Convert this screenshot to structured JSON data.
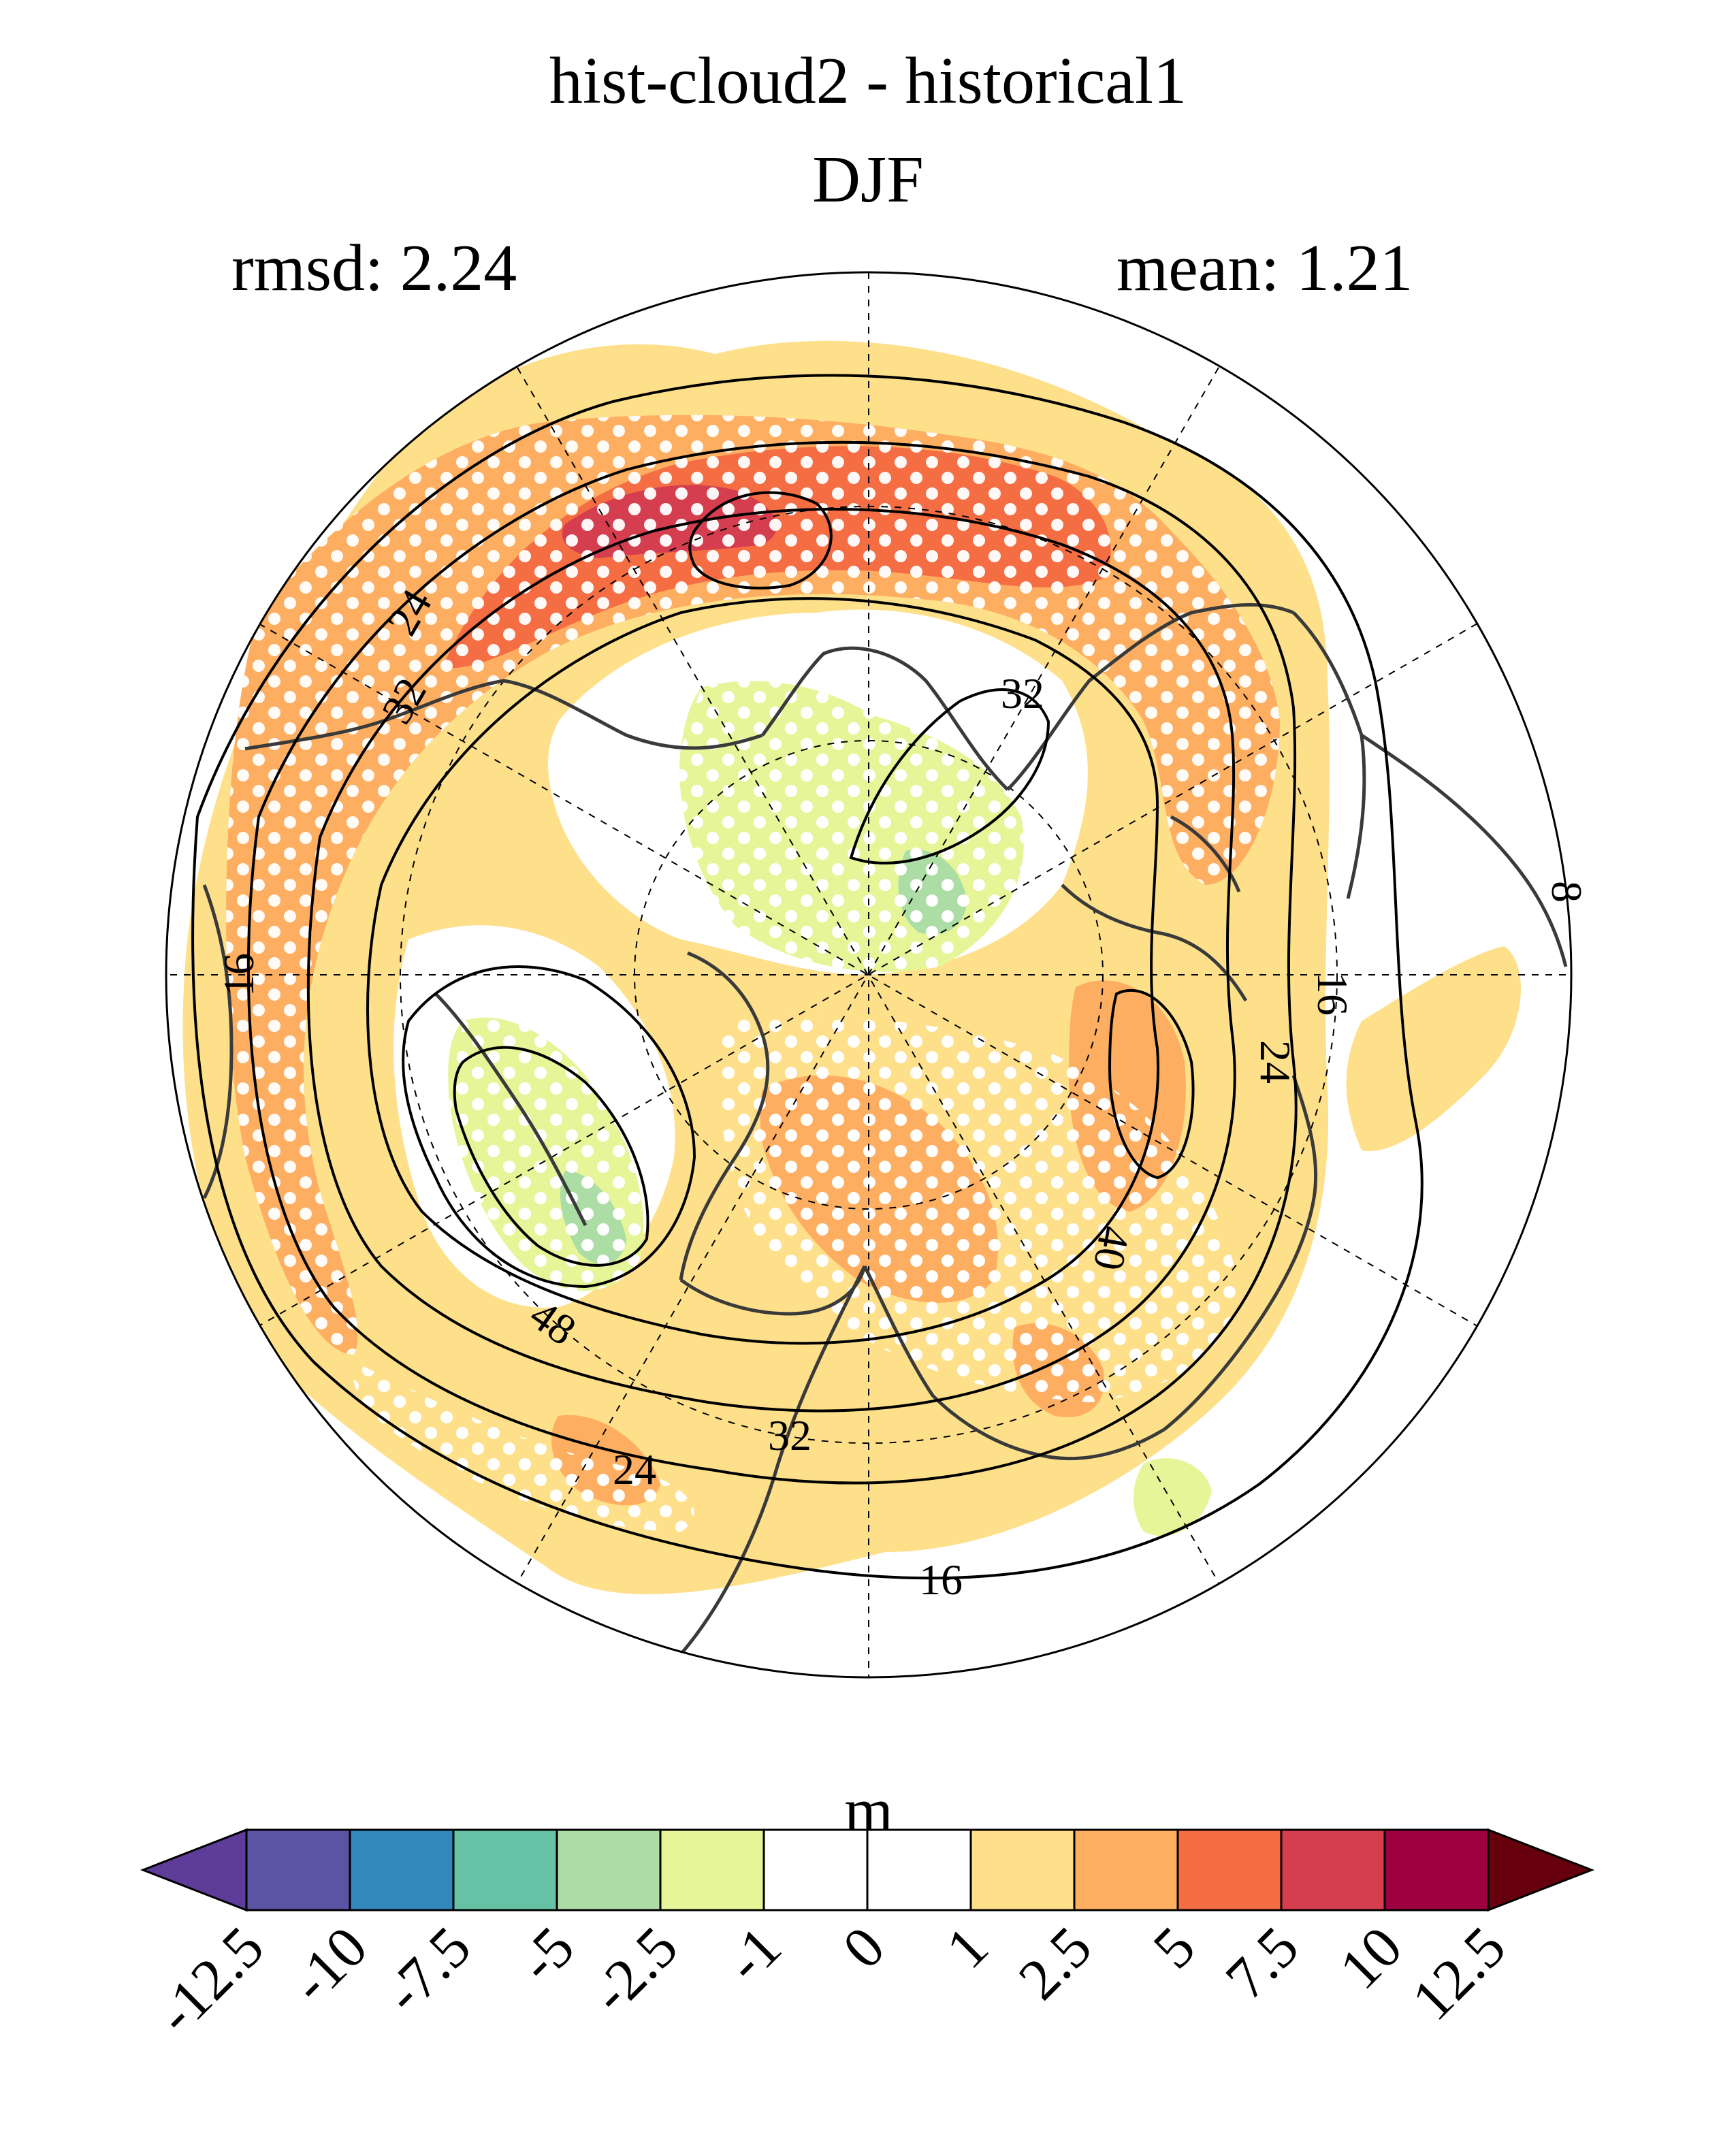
{
  "title": {
    "line1": "hist-cloud2 - historical1",
    "line2": "DJF"
  },
  "stats": {
    "rmsd_label": "rmsd: 2.24",
    "mean_label": "mean: 1.21"
  },
  "map": {
    "projection": "north-polar-stereographic",
    "contour_labels": [
      "24",
      "32",
      "16",
      "32",
      "8",
      "16",
      "24",
      "40",
      "48",
      "32",
      "24",
      "16"
    ],
    "stippling": "significance dots (white)",
    "colors": {
      "ocean_bg": "#ffffff",
      "coast": "#3a3a3a",
      "contour": "#000000",
      "stipple": "#ffffff"
    }
  },
  "colorbar": {
    "unit": "m",
    "ticks": [
      "-12.5",
      "-10",
      "-7.5",
      "-5",
      "-2.5",
      "-1",
      "0",
      "1",
      "2.5",
      "5",
      "7.5",
      "10",
      "12.5"
    ],
    "colors": [
      "#5e3c99",
      "#5b53a4",
      "#3288bd",
      "#66c2a5",
      "#abdda4",
      "#e6f598",
      "#ffffff",
      "#ffffff",
      "#fee08b",
      "#fdae61",
      "#f46d43",
      "#d53e4f",
      "#9e0142",
      "#67000d"
    ]
  }
}
